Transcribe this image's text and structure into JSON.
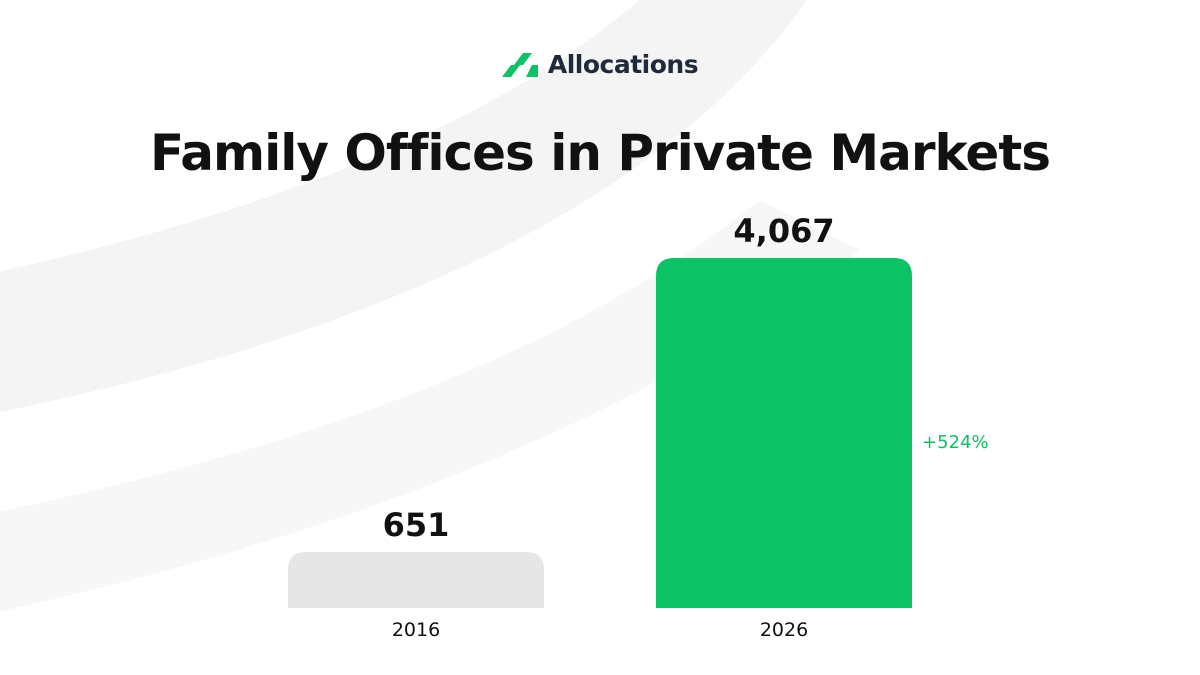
{
  "brand": {
    "name": "Allocations",
    "accent_color": "#0BC264",
    "logo_icon": "allocations-logo-icon"
  },
  "chart_data": {
    "type": "bar",
    "title": "Family Offices in Private Markets",
    "categories": [
      "2016",
      "2026"
    ],
    "values": [
      651,
      4067
    ],
    "value_labels": [
      "651",
      "4,067"
    ],
    "colors": [
      "#E6E6E6",
      "#0BC264"
    ],
    "annotation": "+524%",
    "xlabel": "",
    "ylabel": "",
    "ylim": [
      0,
      4300
    ],
    "grid": false
  }
}
